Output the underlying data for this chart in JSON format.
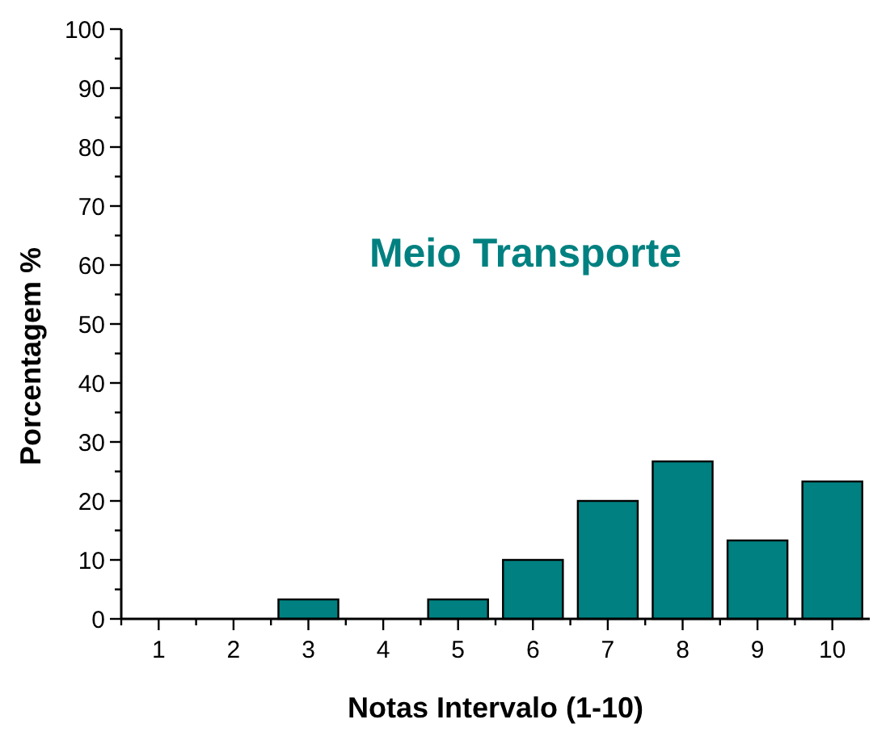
{
  "chart_data": {
    "type": "bar",
    "title": "Meio Transporte",
    "xlabel": "Notas Intervalo (1-10)",
    "ylabel": "Porcentagem %",
    "categories": [
      "1",
      "2",
      "3",
      "4",
      "5",
      "6",
      "7",
      "8",
      "9",
      "10"
    ],
    "values": [
      0,
      0,
      3.3,
      0,
      3.3,
      10,
      20,
      26.7,
      13.3,
      23.3
    ],
    "color": "#008080",
    "ylim": [
      0,
      100
    ],
    "yticks": [
      0,
      {
        "value": 5,
        "label": null
      },
      10,
      {
        "value": 15,
        "label": null
      },
      20,
      {
        "value": 25,
        "label": null
      },
      30,
      {
        "value": 35,
        "label": null
      },
      40,
      {
        "value": 45,
        "label": null
      },
      50,
      {
        "value": 55,
        "label": null
      },
      60,
      {
        "value": 65,
        "label": null
      },
      70,
      {
        "value": 75,
        "label": null
      },
      80,
      {
        "value": 85,
        "label": null
      },
      90,
      {
        "value": 95,
        "label": null
      },
      100
    ],
    "grid": false
  }
}
